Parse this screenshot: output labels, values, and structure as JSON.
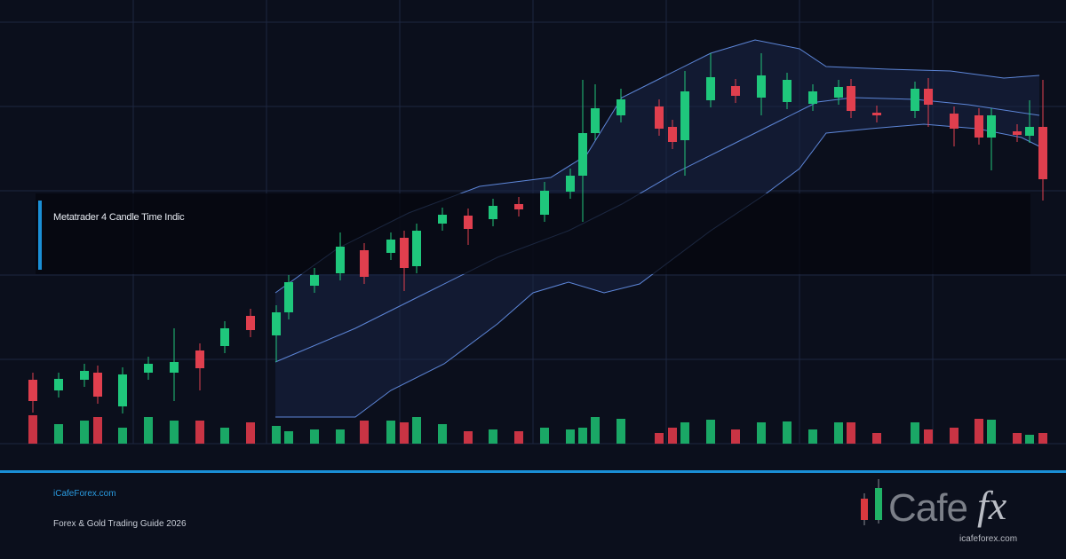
{
  "header": {
    "title": "Metatrader 4 Candle Time Indic"
  },
  "footer": {
    "site": "iCafeForex.com",
    "tagline": "Forex & Gold Trading Guide 2026"
  },
  "logo": {
    "brand": "Cafe",
    "accent": "fx",
    "url": "icafeforex.com"
  }
}
